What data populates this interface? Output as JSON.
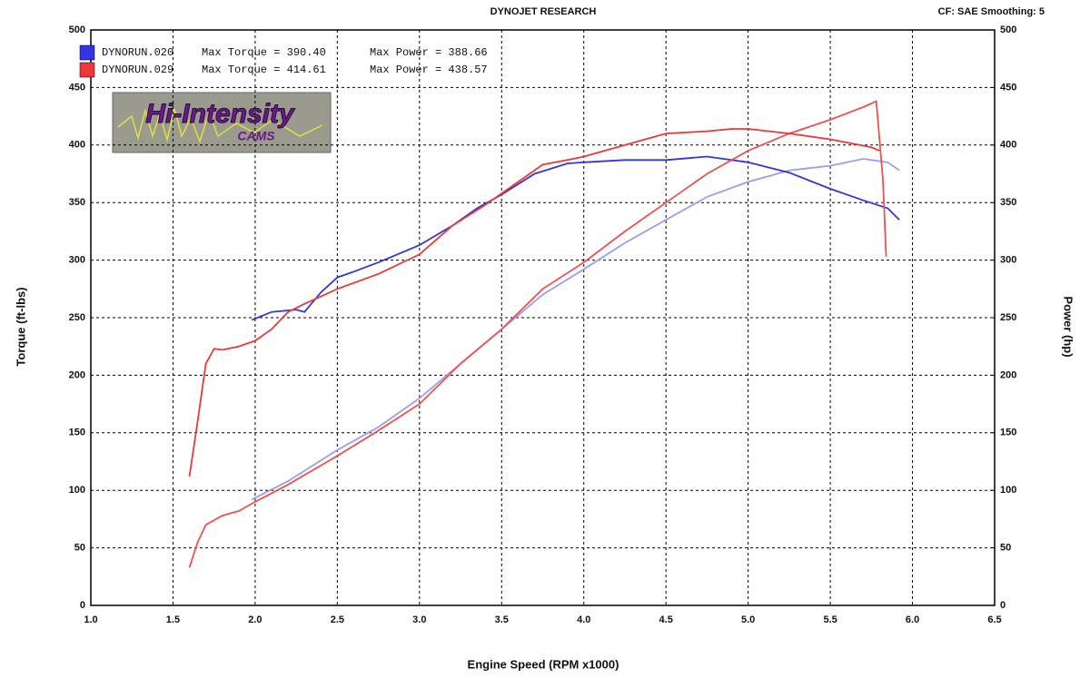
{
  "chart_data": {
    "type": "line",
    "title": "DYNOJET RESEARCH",
    "subtitle": "CF: SAE  Smoothing: 5",
    "xlabel": "Engine Speed (RPM x1000)",
    "ylabel": "Torque (ft-lbs)",
    "y2label": "Power (hp)",
    "logo": {
      "text": "Hi-Intensity",
      "sub": "CAMS"
    },
    "xlim": [
      1,
      6.5
    ],
    "xticks": [
      {
        "value": 1,
        "label": "1.0"
      },
      1.5,
      {
        "value": 2,
        "label": "2.0"
      },
      2.5,
      {
        "value": 3,
        "label": "3.0"
      },
      3.5,
      {
        "value": 4,
        "label": "4.0"
      },
      4.5,
      {
        "value": 5,
        "label": "5.0"
      },
      5.5,
      {
        "value": 6,
        "label": "6.0"
      },
      6.5
    ],
    "ylim": [
      0,
      500
    ],
    "yticks": [
      0,
      50,
      100,
      150,
      200,
      250,
      300,
      350,
      400,
      450,
      500
    ],
    "y2lim": [
      0,
      500
    ],
    "y2ticks": [
      0,
      50,
      100,
      150,
      200,
      250,
      300,
      350,
      400,
      450,
      500
    ],
    "grid": true,
    "series": [
      {
        "name": "DYNORUN.020",
        "color": "#3434e0",
        "max_torque": "Max Torque = 390.40",
        "max_power": "Max Power = 388.66",
        "x": [
          1.98,
          2.1,
          2.25,
          2.3,
          2.4,
          2.5,
          2.6,
          2.75,
          3.0,
          3.2,
          3.35,
          3.5,
          3.7,
          3.9,
          4.0,
          4.25,
          4.5,
          4.75,
          5.0,
          5.25,
          5.5,
          5.7,
          5.85,
          5.92
        ],
        "values": [
          248,
          255,
          257,
          255,
          272,
          285,
          290,
          298,
          313,
          330,
          345,
          357,
          375,
          384,
          385,
          387,
          387,
          390,
          385,
          376,
          362,
          352,
          345,
          335
        ],
        "power": {
          "color": "#9c9cf2",
          "axis": "y2",
          "x": [
            1.98,
            2.2,
            2.5,
            2.75,
            3.0,
            3.25,
            3.5,
            3.75,
            4.0,
            4.25,
            4.5,
            4.75,
            5.0,
            5.25,
            5.5,
            5.7,
            5.85,
            5.92
          ],
          "values": [
            92,
            108,
            135,
            155,
            180,
            210,
            240,
            270,
            292,
            315,
            335,
            355,
            368,
            378,
            382,
            388,
            385,
            378
          ]
        }
      },
      {
        "name": "DYNORUN.029",
        "color": "#ee3838",
        "max_torque": "Max Torque = 414.61",
        "max_power": "Max Power = 438.57",
        "x": [
          1.6,
          1.65,
          1.7,
          1.75,
          1.8,
          1.9,
          2.0,
          2.1,
          2.2,
          2.3,
          2.5,
          2.75,
          3.0,
          3.2,
          3.4,
          3.6,
          3.75,
          3.9,
          4.0,
          4.25,
          4.5,
          4.75,
          4.9,
          5.0,
          5.25,
          5.5,
          5.75,
          5.8
        ],
        "values": [
          112,
          160,
          210,
          223,
          222,
          225,
          230,
          240,
          255,
          262,
          275,
          288,
          305,
          330,
          348,
          368,
          383,
          387,
          390,
          400,
          410,
          412,
          414,
          414,
          410,
          405,
          398,
          395
        ],
        "power": {
          "color": "#f25050",
          "axis": "y2",
          "x": [
            1.6,
            1.65,
            1.7,
            1.8,
            1.9,
            2.0,
            2.2,
            2.5,
            2.75,
            3.0,
            3.25,
            3.5,
            3.75,
            4.0,
            4.25,
            4.5,
            4.75,
            5.0,
            5.25,
            5.5,
            5.7,
            5.78,
            5.82,
            5.84
          ],
          "values": [
            33,
            55,
            70,
            78,
            82,
            90,
            105,
            130,
            152,
            175,
            210,
            240,
            275,
            298,
            325,
            350,
            375,
            395,
            410,
            422,
            433,
            438,
            370,
            303
          ]
        }
      }
    ]
  }
}
